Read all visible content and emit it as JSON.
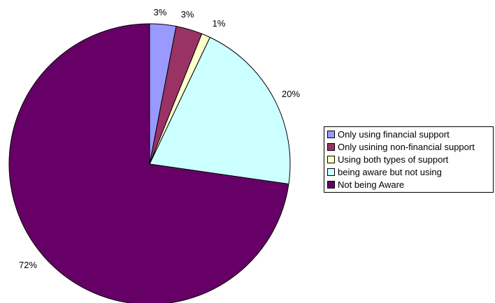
{
  "chart_data": {
    "type": "pie",
    "slices": [
      {
        "label": "Only using financial support",
        "value": 3,
        "value_label": "3%",
        "color": "#9999FF"
      },
      {
        "label": "Only usining non-financial support",
        "value": 3,
        "value_label": "3%",
        "color": "#993366"
      },
      {
        "label": "Using both types of support",
        "value": 1,
        "value_label": "1%",
        "color": "#FFFFCC"
      },
      {
        "label": "being aware but not using",
        "value": 20,
        "value_label": "20%",
        "color": "#CCFFFF"
      },
      {
        "label": "Not being Aware",
        "value": 72,
        "value_label": "72%",
        "color": "#660066"
      }
    ],
    "legend_position": "right",
    "start_angle": "top, clockwise"
  }
}
